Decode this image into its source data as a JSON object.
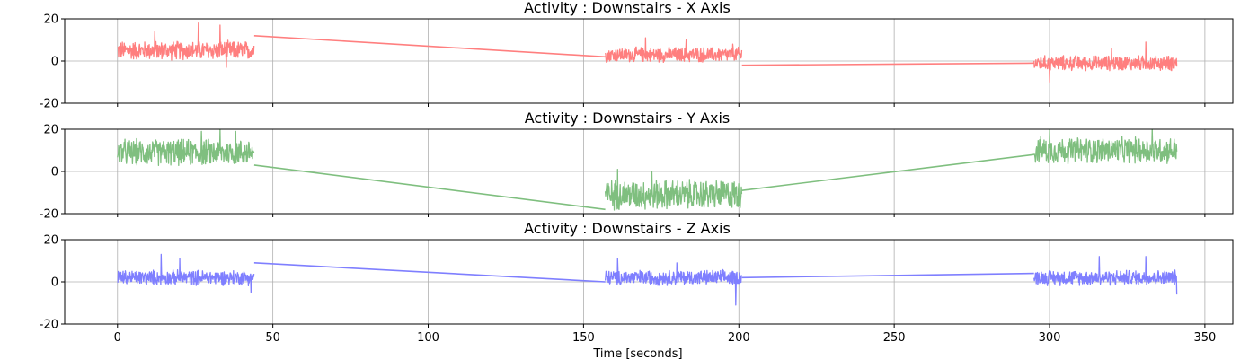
{
  "chart_data": [
    {
      "type": "line",
      "title": "Activity : Downstairs - X Axis",
      "ylim": [
        -20,
        20
      ],
      "yticks": [
        20,
        0,
        -20
      ],
      "xlim": [
        -17,
        359
      ],
      "xticks": [
        0,
        50,
        100,
        150,
        200,
        250,
        300,
        350
      ],
      "grid": true,
      "series": [
        {
          "color": "#ff7f7f",
          "segments": [
            {
              "x_start": 0,
              "x_end": 44,
              "mean": 5,
              "amplitude": 5,
              "spikes": [
                [
                  26,
                  18
                ],
                [
                  33,
                  17
                ],
                [
                  12,
                  14
                ],
                [
                  35,
                  -3
                ]
              ]
            },
            {
              "x_start": 157,
              "x_end": 201,
              "mean": 3,
              "amplitude": 4,
              "spikes": [
                [
                  170,
                  11
                ],
                [
                  183,
                  10
                ],
                [
                  198,
                  8
                ]
              ]
            },
            {
              "x_start": 295,
              "x_end": 341,
              "mean": -1,
              "amplitude": 4,
              "spikes": [
                [
                  331,
                  9
                ],
                [
                  300,
                  -10
                ],
                [
                  320,
                  6
                ]
              ]
            }
          ],
          "connectors": [
            [
              44,
              12,
              157,
              2
            ],
            [
              201,
              -2,
              295,
              -1
            ]
          ]
        }
      ]
    },
    {
      "type": "line",
      "title": "Activity : Downstairs - Y Axis",
      "ylim": [
        -20,
        20
      ],
      "yticks": [
        20,
        0,
        -20
      ],
      "xlim": [
        -17,
        359
      ],
      "xticks": [
        0,
        50,
        100,
        150,
        200,
        250,
        300,
        350
      ],
      "grid": true,
      "series": [
        {
          "color": "#7fbf7f",
          "segments": [
            {
              "x_start": 0,
              "x_end": 44,
              "mean": 9,
              "amplitude": 7,
              "spikes": [
                [
                  33,
                  20
                ],
                [
                  27,
                  19
                ],
                [
                  38,
                  19
                ]
              ]
            },
            {
              "x_start": 157,
              "x_end": 201,
              "mean": -11,
              "amplitude": 8,
              "spikes": [
                [
                  161,
                  1
                ],
                [
                  172,
                  0
                ]
              ]
            },
            {
              "x_start": 295,
              "x_end": 341,
              "mean": 10,
              "amplitude": 7,
              "spikes": [
                [
                  300,
                  20
                ],
                [
                  333,
                  20
                ]
              ]
            }
          ],
          "connectors": [
            [
              44,
              3,
              157,
              -18
            ],
            [
              201,
              -9,
              295,
              8
            ]
          ]
        }
      ]
    },
    {
      "type": "line",
      "title": "Activity : Downstairs - Z Axis",
      "ylim": [
        -20,
        20
      ],
      "yticks": [
        20,
        0,
        -20
      ],
      "xlim": [
        -17,
        359
      ],
      "xticks": [
        0,
        50,
        100,
        150,
        200,
        250,
        300,
        350
      ],
      "xticklabels": [
        "0",
        "50",
        "100",
        "150",
        "200",
        "250",
        "300",
        "350"
      ],
      "xlabel": "Time [seconds]",
      "grid": true,
      "series": [
        {
          "color": "#7f7fff",
          "segments": [
            {
              "x_start": 0,
              "x_end": 44,
              "mean": 2,
              "amplitude": 4,
              "spikes": [
                [
                  14,
                  13
                ],
                [
                  20,
                  11
                ],
                [
                  43,
                  -5
                ]
              ]
            },
            {
              "x_start": 157,
              "x_end": 201,
              "mean": 2,
              "amplitude": 4,
              "spikes": [
                [
                  161,
                  11
                ],
                [
                  199,
                  -11
                ],
                [
                  180,
                  9
                ]
              ]
            },
            {
              "x_start": 295,
              "x_end": 341,
              "mean": 2,
              "amplitude": 4,
              "spikes": [
                [
                  316,
                  12
                ],
                [
                  331,
                  12
                ],
                [
                  341,
                  -6
                ]
              ]
            }
          ],
          "connectors": [
            [
              44,
              9,
              157,
              0
            ],
            [
              201,
              2,
              295,
              4
            ]
          ]
        }
      ]
    }
  ]
}
